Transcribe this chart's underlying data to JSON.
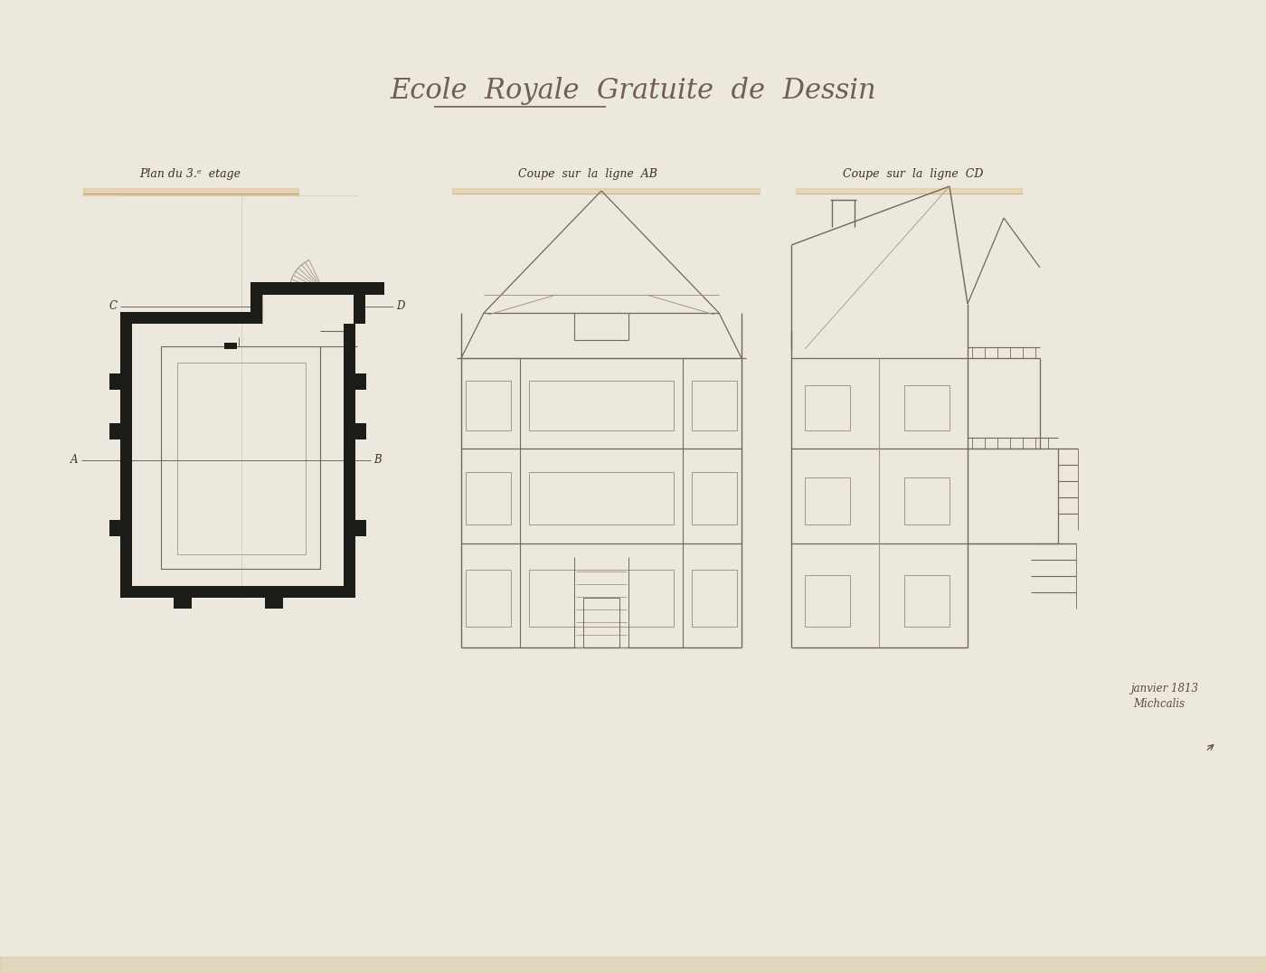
{
  "bg_color": "#ece8de",
  "paper_color": "#ede9df",
  "title": "Ecole  Royale  Gratuite  de  Dessin",
  "title_color": "#706050",
  "wall_color": "#1c1c18",
  "line_color": "#706858",
  "light_color": "#a09888",
  "label_plan": "Plan du 3.ᵉ  etage",
  "label_ab": "Coupe  sur  la  ligne  AB",
  "label_cd": "Coupe  sur  la  ligne  CD",
  "sig_date": "janvier 1813",
  "sig_name": "Michcalis"
}
